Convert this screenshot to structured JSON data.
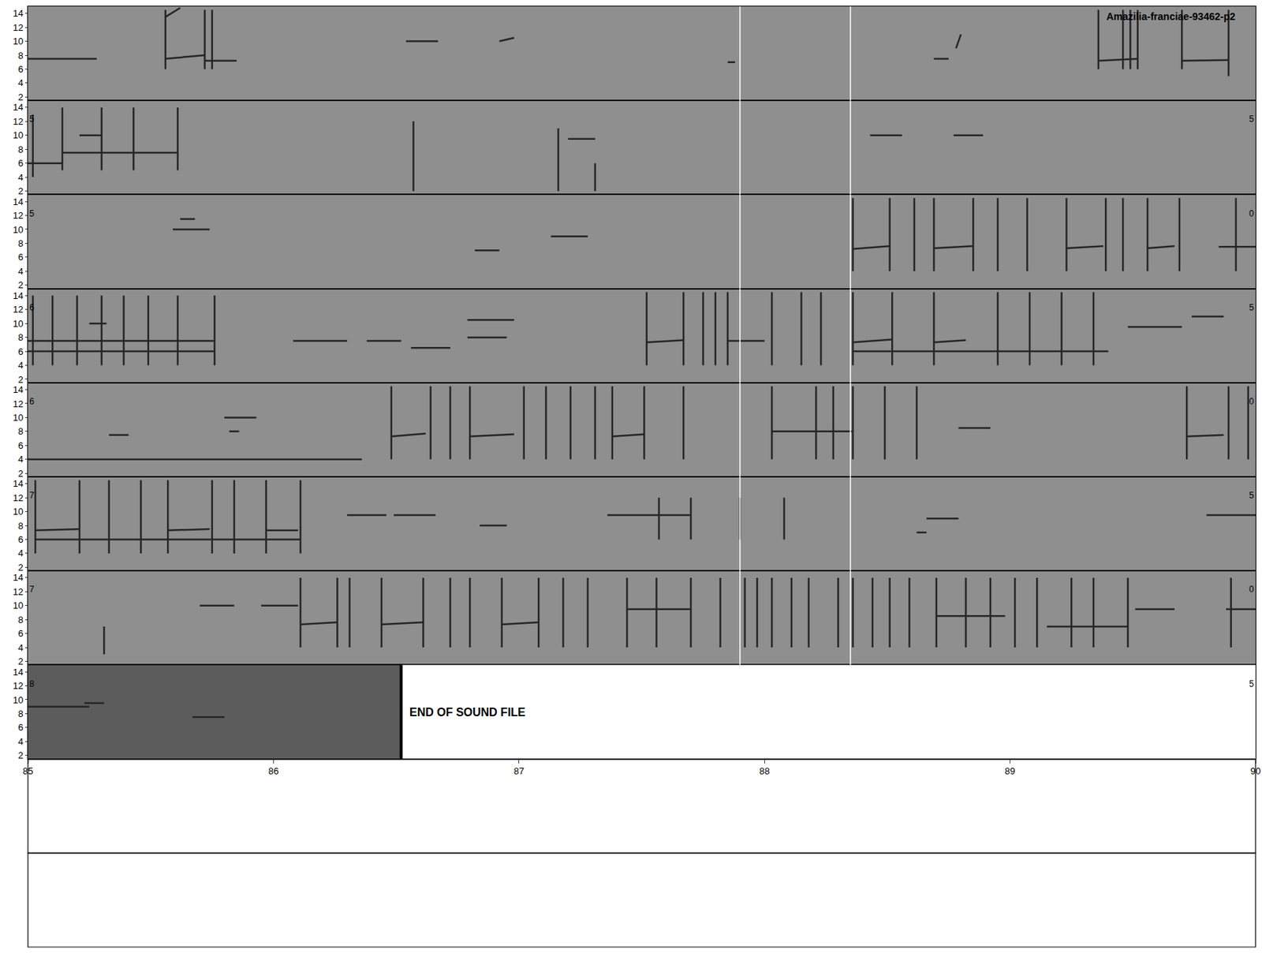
{
  "chart_data": {
    "type": "spectrogram",
    "title": "Amazilia-franciae-93462-p2",
    "xlim": [
      85,
      90
    ],
    "xticks": [
      85,
      86,
      87,
      88,
      89,
      90
    ],
    "ylim": [
      1.5,
      15
    ],
    "yticks": [
      2,
      4,
      6,
      8,
      10,
      12,
      14
    ],
    "color": "#262626",
    "cursor_lines": [
      87.9,
      88.35
    ],
    "end_text": "END OF SOUND FILE",
    "panels": [
      {
        "segments": [
          [
            85.0,
            85.28,
            7.5,
            7.5
          ],
          [
            85.56,
            85.56,
            6.0,
            14.5
          ],
          [
            85.56,
            85.72,
            7.5,
            8.0
          ],
          [
            85.56,
            85.62,
            13.5,
            14.8
          ],
          [
            85.72,
            85.72,
            6.0,
            14.5
          ],
          [
            85.75,
            85.75,
            6.0,
            14.5
          ],
          [
            85.72,
            85.85,
            7.2,
            7.2
          ],
          [
            86.54,
            86.67,
            10.0,
            10.0
          ],
          [
            86.92,
            86.98,
            10.0,
            10.5
          ],
          [
            87.85,
            87.88,
            7.0,
            7.0
          ],
          [
            88.69,
            88.75,
            7.5,
            7.5
          ],
          [
            88.78,
            88.8,
            9.0,
            11.0
          ],
          [
            89.36,
            89.36,
            6.0,
            14.5
          ],
          [
            89.36,
            89.52,
            7.2,
            7.5
          ],
          [
            89.46,
            89.46,
            6.0,
            14.5
          ],
          [
            89.49,
            89.49,
            6.0,
            14.5
          ],
          [
            89.52,
            89.52,
            6.0,
            14.5
          ],
          [
            89.7,
            89.7,
            6.0,
            14.5
          ],
          [
            89.7,
            89.89,
            7.2,
            7.3
          ],
          [
            89.89,
            89.89,
            5.0,
            14.5
          ]
        ]
      },
      {
        "left_label": "5",
        "right_label": "5",
        "segments": [
          [
            85.02,
            85.02,
            4,
            13
          ],
          [
            85.0,
            85.14,
            6,
            6
          ],
          [
            85.14,
            85.14,
            5,
            14
          ],
          [
            85.14,
            85.61,
            7.5,
            7.5
          ],
          [
            85.21,
            85.3,
            10,
            10
          ],
          [
            85.3,
            85.3,
            5,
            14
          ],
          [
            85.43,
            85.43,
            5,
            14
          ],
          [
            85.61,
            85.61,
            5,
            14
          ],
          [
            86.57,
            86.57,
            2,
            12
          ],
          [
            87.16,
            87.16,
            2,
            11
          ],
          [
            87.2,
            87.31,
            9.5,
            9.5
          ],
          [
            87.31,
            87.31,
            2,
            6
          ],
          [
            88.43,
            88.56,
            10,
            10
          ],
          [
            88.77,
            88.89,
            10,
            10
          ]
        ]
      },
      {
        "left_label": "5",
        "right_label": "0",
        "segments": [
          [
            85.59,
            85.74,
            10,
            10
          ],
          [
            85.62,
            85.68,
            11.5,
            11.5
          ],
          [
            86.82,
            86.92,
            7,
            7
          ],
          [
            87.13,
            87.28,
            9,
            9
          ],
          [
            88.36,
            88.36,
            4,
            14.5
          ],
          [
            88.51,
            88.51,
            4,
            14.5
          ],
          [
            88.61,
            88.61,
            4,
            14.5
          ],
          [
            88.69,
            88.69,
            4,
            14.5
          ],
          [
            88.85,
            88.85,
            4,
            14.5
          ],
          [
            88.95,
            88.95,
            4,
            14.5
          ],
          [
            89.07,
            89.07,
            4,
            14.5
          ],
          [
            89.23,
            89.23,
            4,
            14.5
          ],
          [
            89.39,
            89.39,
            4,
            14.5
          ],
          [
            89.46,
            89.46,
            4,
            14.5
          ],
          [
            89.56,
            89.56,
            4,
            14.5
          ],
          [
            89.69,
            89.69,
            4,
            14.5
          ],
          [
            89.92,
            89.92,
            4,
            14.5
          ],
          [
            88.36,
            88.51,
            7.2,
            7.6
          ],
          [
            88.69,
            88.85,
            7.3,
            7.6
          ],
          [
            89.23,
            89.38,
            7.3,
            7.6
          ],
          [
            89.56,
            89.67,
            7.3,
            7.6
          ],
          [
            89.85,
            90.0,
            7.5,
            7.5
          ]
        ]
      },
      {
        "left_label": "6",
        "right_label": "5",
        "segments": [
          [
            85.02,
            85.02,
            4,
            14
          ],
          [
            85.1,
            85.1,
            4,
            14
          ],
          [
            85.2,
            85.2,
            4,
            14
          ],
          [
            85.3,
            85.3,
            4,
            14
          ],
          [
            85.39,
            85.39,
            4,
            14
          ],
          [
            85.49,
            85.49,
            4,
            14
          ],
          [
            85.61,
            85.61,
            4,
            14
          ],
          [
            85.76,
            85.76,
            4,
            14
          ],
          [
            85.0,
            85.76,
            7.5,
            7.5
          ],
          [
            85.0,
            85.76,
            6,
            6
          ],
          [
            85.25,
            85.32,
            10,
            10
          ],
          [
            86.08,
            86.3,
            7.5,
            7.5
          ],
          [
            86.38,
            86.52,
            7.5,
            7.5
          ],
          [
            86.56,
            86.72,
            6.5,
            6.5
          ],
          [
            86.79,
            86.98,
            10.5,
            10.5
          ],
          [
            86.79,
            86.95,
            8,
            8
          ],
          [
            87.52,
            87.52,
            4,
            14.5
          ],
          [
            87.67,
            87.67,
            4,
            14.5
          ],
          [
            87.75,
            87.75,
            4,
            14.5
          ],
          [
            87.8,
            87.8,
            4,
            14.5
          ],
          [
            87.85,
            87.85,
            4,
            14.5
          ],
          [
            88.03,
            88.03,
            4,
            14.5
          ],
          [
            88.15,
            88.15,
            4,
            14.5
          ],
          [
            88.23,
            88.23,
            4,
            14.5
          ],
          [
            88.36,
            88.36,
            4,
            14.5
          ],
          [
            88.52,
            88.52,
            4,
            14.5
          ],
          [
            88.69,
            88.69,
            4,
            14.5
          ],
          [
            88.95,
            88.95,
            4,
            14.5
          ],
          [
            89.08,
            89.08,
            4,
            14.5
          ],
          [
            89.21,
            89.21,
            4,
            14.5
          ],
          [
            89.34,
            89.34,
            4,
            14.5
          ],
          [
            87.52,
            87.67,
            7.3,
            7.6
          ],
          [
            87.85,
            88.0,
            7.5,
            7.5
          ],
          [
            88.36,
            88.52,
            7.3,
            7.7
          ],
          [
            88.69,
            88.82,
            7.3,
            7.6
          ],
          [
            88.36,
            89.4,
            6,
            6
          ],
          [
            89.48,
            89.7,
            9.5,
            9.5
          ],
          [
            89.74,
            89.87,
            11,
            11
          ]
        ]
      },
      {
        "left_label": "6",
        "right_label": "0",
        "segments": [
          [
            85.0,
            86.36,
            4,
            4
          ],
          [
            85.33,
            85.41,
            7.5,
            7.5
          ],
          [
            85.8,
            85.93,
            10,
            10
          ],
          [
            85.82,
            85.86,
            8,
            8
          ],
          [
            86.48,
            86.48,
            4,
            14.5
          ],
          [
            86.64,
            86.64,
            4,
            14.5
          ],
          [
            86.72,
            86.72,
            4,
            14.5
          ],
          [
            86.8,
            86.8,
            4,
            14.5
          ],
          [
            87.02,
            87.02,
            4,
            14.5
          ],
          [
            87.11,
            87.11,
            4,
            14.5
          ],
          [
            87.21,
            87.21,
            4,
            14.5
          ],
          [
            87.31,
            87.31,
            4,
            14.5
          ],
          [
            87.38,
            87.38,
            4,
            14.5
          ],
          [
            87.51,
            87.51,
            4,
            14.5
          ],
          [
            87.67,
            87.67,
            4,
            14.5
          ],
          [
            88.03,
            88.03,
            4,
            14.5
          ],
          [
            88.21,
            88.21,
            4,
            14.5
          ],
          [
            88.28,
            88.28,
            4,
            14.5
          ],
          [
            88.36,
            88.36,
            4,
            14.5
          ],
          [
            88.49,
            88.49,
            4,
            14.5
          ],
          [
            88.62,
            88.62,
            4,
            14.5
          ],
          [
            86.48,
            86.62,
            7.3,
            7.7
          ],
          [
            86.8,
            86.98,
            7.3,
            7.6
          ],
          [
            87.38,
            87.51,
            7.3,
            7.6
          ],
          [
            88.03,
            88.36,
            8,
            8
          ],
          [
            88.79,
            88.92,
            8.5,
            8.5
          ],
          [
            89.72,
            89.72,
            4,
            14.5
          ],
          [
            89.89,
            89.89,
            4,
            14.5
          ],
          [
            89.97,
            89.97,
            4,
            14.5
          ],
          [
            89.72,
            89.87,
            7.3,
            7.5
          ]
        ]
      },
      {
        "left_label": "7",
        "right_label": "5",
        "segments": [
          [
            85.03,
            85.03,
            4,
            14.5
          ],
          [
            85.21,
            85.21,
            4,
            14.5
          ],
          [
            85.33,
            85.33,
            4,
            14.5
          ],
          [
            85.46,
            85.46,
            4,
            14.5
          ],
          [
            85.57,
            85.57,
            4,
            14.5
          ],
          [
            85.75,
            85.75,
            4,
            14.5
          ],
          [
            85.84,
            85.84,
            4,
            14.5
          ],
          [
            85.97,
            85.97,
            4,
            14.5
          ],
          [
            86.11,
            86.11,
            4,
            14.5
          ],
          [
            85.03,
            85.21,
            7.3,
            7.5
          ],
          [
            85.57,
            85.74,
            7.3,
            7.5
          ],
          [
            85.97,
            86.1,
            7.3,
            7.3
          ],
          [
            85.03,
            86.11,
            6,
            6
          ],
          [
            86.3,
            86.46,
            9.5,
            9.5
          ],
          [
            86.49,
            86.66,
            9.5,
            9.5
          ],
          [
            86.84,
            86.95,
            8,
            8
          ],
          [
            87.36,
            87.7,
            9.5,
            9.5
          ],
          [
            87.57,
            87.57,
            6,
            12
          ],
          [
            87.7,
            87.7,
            6,
            12
          ],
          [
            87.9,
            87.9,
            6,
            12
          ],
          [
            88.08,
            88.08,
            6,
            12
          ],
          [
            88.62,
            88.66,
            7,
            7
          ],
          [
            88.66,
            88.79,
            9,
            9
          ],
          [
            89.8,
            90.0,
            9.5,
            9.5
          ]
        ]
      },
      {
        "left_label": "7",
        "right_label": "0",
        "segments": [
          [
            85.31,
            85.31,
            3,
            7
          ],
          [
            85.7,
            85.84,
            10,
            10
          ],
          [
            85.95,
            86.1,
            10,
            10
          ],
          [
            86.11,
            86.11,
            4,
            14
          ],
          [
            86.26,
            86.26,
            4,
            14
          ],
          [
            86.31,
            86.31,
            4,
            14
          ],
          [
            86.44,
            86.44,
            4,
            14
          ],
          [
            86.61,
            86.61,
            4,
            14
          ],
          [
            86.72,
            86.72,
            4,
            14
          ],
          [
            86.8,
            86.8,
            4,
            14
          ],
          [
            86.93,
            86.93,
            4,
            14
          ],
          [
            87.08,
            87.08,
            4,
            14
          ],
          [
            87.18,
            87.18,
            4,
            14
          ],
          [
            87.28,
            87.28,
            4,
            14
          ],
          [
            87.44,
            87.44,
            4,
            14
          ],
          [
            87.56,
            87.56,
            4,
            14
          ],
          [
            87.7,
            87.7,
            4,
            14
          ],
          [
            87.82,
            87.82,
            4,
            14
          ],
          [
            87.92,
            87.92,
            4,
            14
          ],
          [
            87.97,
            87.97,
            4,
            14
          ],
          [
            88.03,
            88.03,
            4,
            14
          ],
          [
            88.11,
            88.11,
            4,
            14
          ],
          [
            88.18,
            88.18,
            4,
            14
          ],
          [
            88.3,
            88.3,
            4,
            14
          ],
          [
            88.36,
            88.36,
            4,
            14
          ],
          [
            88.44,
            88.44,
            4,
            14
          ],
          [
            88.51,
            88.51,
            4,
            14
          ],
          [
            88.59,
            88.59,
            4,
            14
          ],
          [
            88.7,
            88.7,
            4,
            14
          ],
          [
            88.82,
            88.82,
            4,
            14
          ],
          [
            88.92,
            88.92,
            4,
            14
          ],
          [
            89.02,
            89.02,
            4,
            14
          ],
          [
            89.11,
            89.11,
            4,
            14
          ],
          [
            89.25,
            89.25,
            4,
            14
          ],
          [
            89.34,
            89.34,
            4,
            14
          ],
          [
            89.48,
            89.48,
            4,
            14
          ],
          [
            89.9,
            89.9,
            4,
            14
          ],
          [
            86.11,
            86.26,
            7.3,
            7.6
          ],
          [
            86.44,
            86.61,
            7.3,
            7.6
          ],
          [
            86.93,
            87.08,
            7.3,
            7.6
          ],
          [
            87.44,
            87.7,
            9.5,
            9.5
          ],
          [
            88.7,
            88.98,
            8.5,
            8.5
          ],
          [
            89.15,
            89.48,
            7,
            7
          ],
          [
            89.51,
            89.67,
            9.5,
            9.5
          ],
          [
            89.88,
            90.0,
            9.5,
            9.5
          ]
        ]
      },
      {
        "left_label": "8",
        "right_label": "5",
        "end_time": 86.52,
        "segments": [
          [
            85.0,
            85.25,
            9,
            9
          ],
          [
            85.23,
            85.31,
            9.5,
            9.5
          ],
          [
            85.67,
            85.8,
            7.5,
            7.5
          ]
        ]
      }
    ]
  }
}
